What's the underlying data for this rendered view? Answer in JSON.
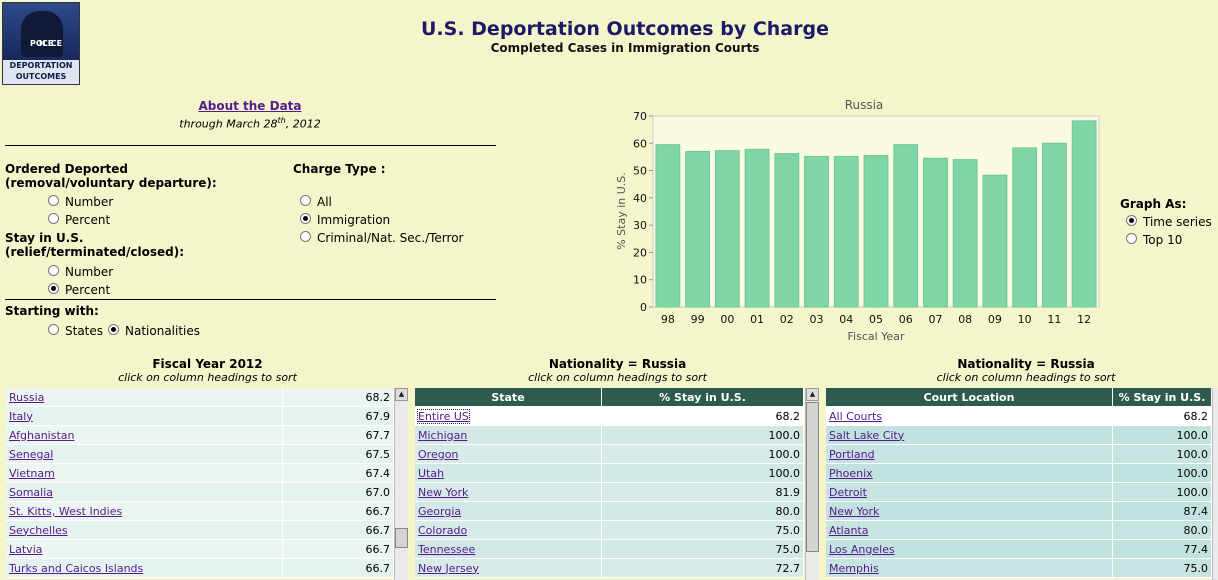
{
  "logo": {
    "line1": "POLICE",
    "line2": "ICE",
    "band1": "DEPORTATION",
    "band2": "OUTCOMES"
  },
  "header": {
    "title": "U.S. Deportation Outcomes by Charge",
    "subtitle": "Completed Cases in Immigration Courts"
  },
  "about": {
    "link": "About the Data",
    "through_prefix": "through March 28",
    "through_sup": "th",
    "through_suffix": ", 2012"
  },
  "measures": {
    "deported_label_1": "Ordered Deported",
    "deported_label_2": "(removal/voluntary departure):",
    "deported_opts": [
      "Number",
      "Percent"
    ],
    "stay_label_1": "Stay in U.S.",
    "stay_label_2": "(relief/terminated/closed):",
    "stay_opts": [
      "Number",
      "Percent"
    ]
  },
  "charge": {
    "label": "Charge Type :",
    "opts": [
      "All",
      "Immigration",
      "Criminal/Nat. Sec./Terror"
    ]
  },
  "starting": {
    "label": "Starting with:",
    "opts": [
      "States",
      "Nationalities"
    ]
  },
  "graph_as": {
    "label": "Graph As:",
    "opts": [
      "Time series",
      "Top 10"
    ]
  },
  "chart_data": {
    "type": "bar",
    "title": "Russia",
    "xlabel": "Fiscal Year",
    "ylabel": "% Stay in U.S.",
    "categories": [
      "98",
      "99",
      "00",
      "01",
      "02",
      "03",
      "04",
      "05",
      "06",
      "07",
      "08",
      "09",
      "10",
      "11",
      "12"
    ],
    "values": [
      59.5,
      57,
      57.3,
      57.8,
      56.2,
      55.2,
      55.2,
      55.5,
      59.5,
      54.5,
      54,
      48.3,
      58.3,
      60,
      68.2
    ],
    "ylim": [
      0,
      70
    ],
    "yticks": [
      0,
      10,
      20,
      30,
      40,
      50,
      60,
      70
    ],
    "bar_color": "#7fd6a4",
    "grid": false
  },
  "table1": {
    "heading": "Fiscal Year 2012",
    "sub": "click on column headings to sort",
    "rows": [
      [
        "Russia",
        "68.2"
      ],
      [
        "Italy",
        "67.9"
      ],
      [
        "Afghanistan",
        "67.7"
      ],
      [
        "Senegal",
        "67.5"
      ],
      [
        "Vietnam",
        "67.4"
      ],
      [
        "Somalia",
        "67.0"
      ],
      [
        "St. Kitts, West Indies",
        "66.7"
      ],
      [
        "Seychelles",
        "66.7"
      ],
      [
        "Latvia",
        "66.7"
      ],
      [
        "Turks and Caicos Islands",
        "66.7"
      ]
    ]
  },
  "table2": {
    "heading": "Nationality = Russia",
    "sub": "click on column headings to sort",
    "col1": "State",
    "col2": "% Stay in U.S.",
    "rows": [
      [
        "Entire US",
        "68.2"
      ],
      [
        "Michigan",
        "100.0"
      ],
      [
        "Oregon",
        "100.0"
      ],
      [
        "Utah",
        "100.0"
      ],
      [
        "New York",
        "81.9"
      ],
      [
        "Georgia",
        "80.0"
      ],
      [
        "Colorado",
        "75.0"
      ],
      [
        "Tennessee",
        "75.0"
      ],
      [
        "New Jersey",
        "72.7"
      ]
    ]
  },
  "table3": {
    "heading": "Nationality = Russia",
    "sub": "click on column headings to sort",
    "col1": "Court Location",
    "col2": "% Stay in U.S.",
    "rows": [
      [
        "All Courts",
        "68.2"
      ],
      [
        "Salt Lake City",
        "100.0"
      ],
      [
        "Portland",
        "100.0"
      ],
      [
        "Phoenix",
        "100.0"
      ],
      [
        "Detroit",
        "100.0"
      ],
      [
        "New York",
        "87.4"
      ],
      [
        "Atlanta",
        "80.0"
      ],
      [
        "Los Angeles",
        "77.4"
      ],
      [
        "Memphis",
        "75.0"
      ]
    ]
  }
}
